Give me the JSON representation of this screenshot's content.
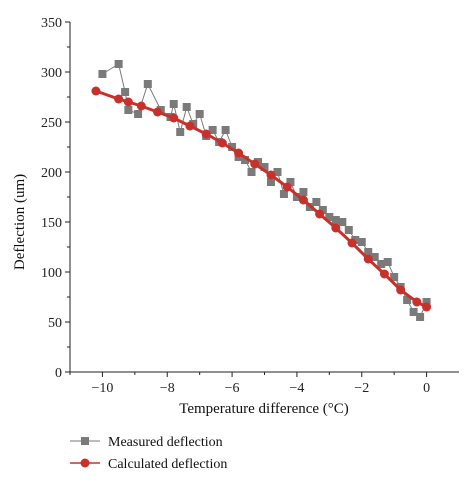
{
  "chart_data": {
    "type": "scatter",
    "xlabel": "Temperature difference (°C)",
    "ylabel": "Deflection (um)",
    "xlim": [
      -11,
      1
    ],
    "ylim": [
      0,
      350
    ],
    "x_ticks": [
      "−10",
      "−8",
      "−6",
      "−4",
      "−2",
      "0"
    ],
    "x_tick_values": [
      -10,
      -8,
      -6,
      -4,
      -2,
      0
    ],
    "y_ticks": [
      "0",
      "50",
      "100",
      "150",
      "200",
      "250",
      "300",
      "350"
    ],
    "y_tick_values": [
      0,
      50,
      100,
      150,
      200,
      250,
      300,
      350
    ],
    "grid": false,
    "legend_position": "bottom-left",
    "series": [
      {
        "name": "Measured deflection",
        "color": "#7a7a7a",
        "marker": "square",
        "connected": true,
        "x": [
          -10.0,
          -9.5,
          -9.3,
          -9.2,
          -8.9,
          -8.6,
          -8.2,
          -7.9,
          -7.8,
          -7.6,
          -7.4,
          -7.2,
          -7.0,
          -6.8,
          -6.6,
          -6.4,
          -6.2,
          -6.0,
          -5.8,
          -5.6,
          -5.4,
          -5.2,
          -5.0,
          -4.8,
          -4.6,
          -4.4,
          -4.2,
          -4.0,
          -3.8,
          -3.6,
          -3.4,
          -3.2,
          -3.0,
          -2.8,
          -2.6,
          -2.4,
          -2.2,
          -2.0,
          -1.8,
          -1.6,
          -1.4,
          -1.2,
          -1.0,
          -0.8,
          -0.6,
          -0.4,
          -0.2,
          0.0
        ],
        "y": [
          298,
          308,
          280,
          262,
          258,
          288,
          262,
          255,
          268,
          240,
          265,
          248,
          258,
          236,
          242,
          230,
          242,
          225,
          215,
          212,
          200,
          210,
          205,
          190,
          200,
          178,
          190,
          175,
          180,
          165,
          170,
          162,
          155,
          152,
          150,
          142,
          132,
          130,
          120,
          115,
          108,
          110,
          95,
          85,
          72,
          60,
          55,
          70
        ]
      },
      {
        "name": "Calculated deflection",
        "color": "#c8312b",
        "marker": "circle",
        "connected": true,
        "x": [
          -10.2,
          -9.5,
          -9.2,
          -8.8,
          -8.3,
          -7.8,
          -7.3,
          -6.8,
          -6.3,
          -5.8,
          -5.3,
          -4.8,
          -4.3,
          -3.8,
          -3.3,
          -2.8,
          -2.3,
          -1.8,
          -1.3,
          -0.8,
          -0.3,
          0.0
        ],
        "y": [
          281,
          273,
          270,
          266,
          260,
          254,
          246,
          238,
          229,
          219,
          208,
          197,
          185,
          172,
          158,
          144,
          129,
          113,
          98,
          82,
          70,
          65
        ]
      }
    ]
  }
}
